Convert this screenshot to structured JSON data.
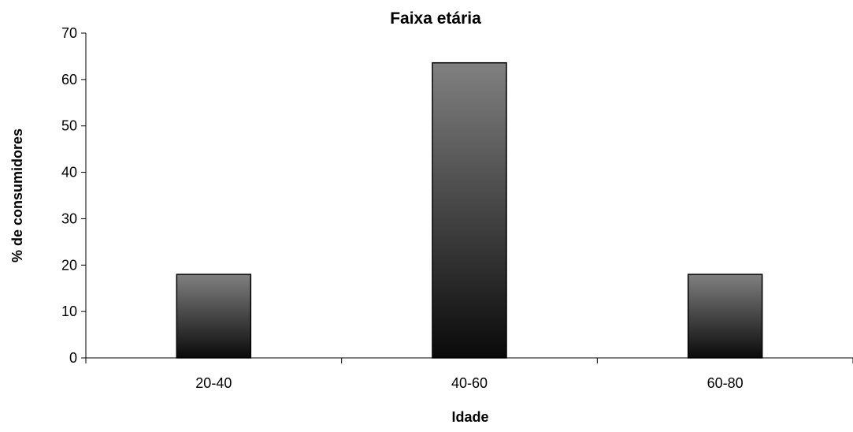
{
  "chart_data": {
    "type": "bar",
    "title": "Faixa etária",
    "xlabel": "Idade",
    "ylabel": "% de consumidores",
    "categories": [
      "20-40",
      "40-60",
      "60-80"
    ],
    "values": [
      18,
      63.6,
      18
    ],
    "ylim": [
      0,
      70
    ],
    "yticks": [
      0,
      10,
      20,
      30,
      40,
      50,
      60,
      70
    ],
    "grid": false,
    "legend": "none",
    "bar_gradient": [
      "#808080",
      "#0a0a0a"
    ]
  }
}
